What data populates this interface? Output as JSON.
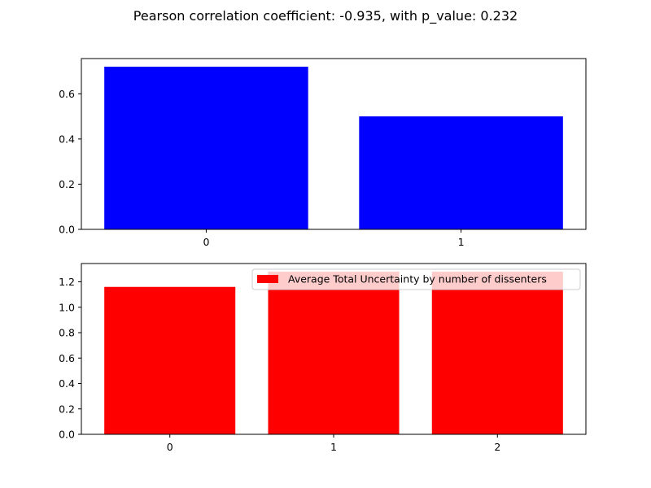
{
  "figure": {
    "suptitle": "Pearson correlation coefficient: -0.935, with p_value: 0.232"
  },
  "chart_data": [
    {
      "type": "bar",
      "categories": [
        "0",
        "1"
      ],
      "values": [
        0.72,
        0.5
      ],
      "color": "#0000ff",
      "ylim": [
        0,
        0.756
      ],
      "yticks": [
        0.0,
        0.2,
        0.4,
        0.6
      ],
      "ytick_labels": [
        "0.0",
        "0.2",
        "0.4",
        "0.6"
      ],
      "xlabel": "",
      "ylabel": "",
      "grid": false
    },
    {
      "type": "bar",
      "categories": [
        "0",
        "1",
        "2"
      ],
      "values": [
        1.16,
        1.28,
        1.28
      ],
      "color": "#ff0000",
      "ylim": [
        0,
        1.344
      ],
      "yticks": [
        0.0,
        0.2,
        0.4,
        0.6,
        0.8,
        1.0,
        1.2
      ],
      "ytick_labels": [
        "0.0",
        "0.2",
        "0.4",
        "0.6",
        "0.8",
        "1.0",
        "1.2"
      ],
      "xlabel": "",
      "ylabel": "",
      "grid": false,
      "legend": {
        "label": "Average Total Uncertainty by number of dissenters",
        "placement": "top-right"
      }
    }
  ]
}
